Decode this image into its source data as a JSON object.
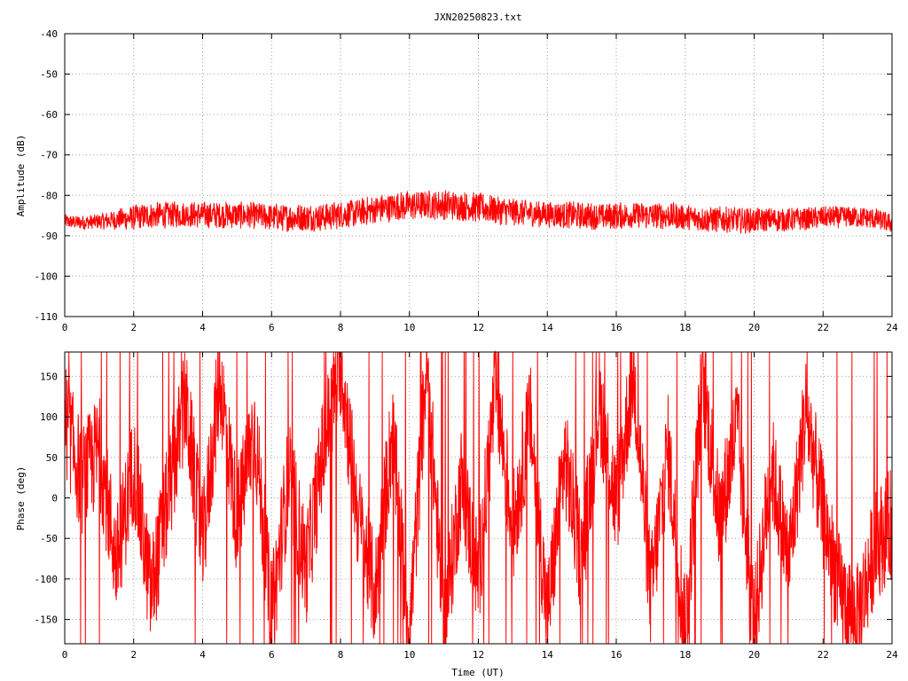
{
  "title": "JXN20250823.txt",
  "colors": {
    "series": "#ff0000",
    "axes": "#000000",
    "grid": "#a0a0a0"
  },
  "chart_data": [
    {
      "type": "line",
      "panel": "amplitude",
      "title": "JXN20250823.txt",
      "ylabel": "Amplitude (dB)",
      "xlabel": "",
      "xlim": [
        0,
        24
      ],
      "ylim": [
        -110,
        -40
      ],
      "xticks": [
        "0",
        "2",
        "4",
        "6",
        "8",
        "10",
        "12",
        "14",
        "16",
        "18",
        "20",
        "22",
        "24"
      ],
      "yticks": [
        "-40",
        "-50",
        "-60",
        "-70",
        "-80",
        "-90",
        "-100",
        "-110"
      ],
      "grid": true,
      "series": [
        {
          "x": [
            0,
            0.5,
            1,
            1.5,
            2,
            2.5,
            3,
            3.5,
            4,
            4.5,
            5,
            5.5,
            6,
            6.5,
            7,
            7.5,
            8,
            8.5,
            9,
            9.5,
            10,
            10.5,
            11,
            11.5,
            12,
            12.5,
            13,
            13.5,
            14,
            14.5,
            15,
            15.5,
            16,
            16.5,
            17,
            17.5,
            18,
            18.5,
            19,
            19.5,
            20,
            20.5,
            21,
            21.5,
            22,
            22.5,
            23,
            23.5,
            24
          ],
          "y_center": [
            -86.5,
            -86.7,
            -86.5,
            -86.0,
            -85.5,
            -85.0,
            -84.8,
            -84.7,
            -84.8,
            -84.8,
            -84.9,
            -85.0,
            -85.3,
            -85.5,
            -85.5,
            -85.3,
            -84.8,
            -84.3,
            -83.5,
            -82.9,
            -82.5,
            -82.3,
            -82.3,
            -82.6,
            -83.0,
            -83.6,
            -84.0,
            -84.4,
            -84.6,
            -84.8,
            -85.0,
            -85.2,
            -85.0,
            -85.0,
            -85.0,
            -85.0,
            -85.5,
            -85.8,
            -86.0,
            -86.2,
            -86.3,
            -86.0,
            -86.0,
            -85.8,
            -85.5,
            -85.3,
            -85.3,
            -85.8,
            -87.0
          ],
          "half_range": [
            1.8,
            1.8,
            2.0,
            2.6,
            3.2,
            3.3,
            3.4,
            3.3,
            3.4,
            3.4,
            3.4,
            3.4,
            3.5,
            3.6,
            3.6,
            3.6,
            3.6,
            3.6,
            3.7,
            3.7,
            3.8,
            3.8,
            3.8,
            3.8,
            3.8,
            3.7,
            3.6,
            3.5,
            3.4,
            3.4,
            3.4,
            3.4,
            3.4,
            3.4,
            3.5,
            3.5,
            3.4,
            3.4,
            3.3,
            3.3,
            3.2,
            3.1,
            3.0,
            2.9,
            2.8,
            2.8,
            2.8,
            2.8,
            2.5
          ]
        }
      ]
    },
    {
      "type": "line",
      "panel": "phase",
      "title": "",
      "ylabel": "Phase (deg)",
      "xlabel": "Time (UT)",
      "xlim": [
        0,
        24
      ],
      "ylim": [
        -180,
        180
      ],
      "xticks": [
        "0",
        "2",
        "4",
        "6",
        "8",
        "10",
        "12",
        "14",
        "16",
        "18",
        "20",
        "22",
        "24"
      ],
      "yticks": [
        "150",
        "100",
        "50",
        "0",
        "-50",
        "-100",
        "-150"
      ],
      "grid": true,
      "series": [
        {
          "x": [
            0,
            0.5,
            1,
            1.5,
            2,
            2.5,
            3,
            3.5,
            4,
            4.5,
            5,
            5.5,
            6,
            6.5,
            7,
            7.5,
            8,
            8.5,
            9,
            9.5,
            10,
            10.5,
            11,
            11.5,
            12,
            12.5,
            13,
            13.5,
            14,
            14.5,
            15,
            15.5,
            16,
            16.5,
            17,
            17.5,
            18,
            18.5,
            19,
            19.5,
            20,
            20.5,
            21,
            21.5,
            22,
            22.5,
            23,
            23.5,
            24
          ],
          "y_wrapped": [
            100,
            20,
            60,
            -80,
            40,
            -120,
            0,
            120,
            -60,
            150,
            -30,
            90,
            -150,
            30,
            -90,
            60,
            170,
            -20,
            -120,
            80,
            -170,
            170,
            -160,
            20,
            -100,
            140,
            -40,
            100,
            -150,
            50,
            -80,
            120,
            -10,
            160,
            -120,
            60,
            -170,
            150,
            -30,
            90,
            -160,
            40,
            -80,
            110,
            -20,
            -120,
            -150,
            -60,
            -30
          ]
        }
      ]
    }
  ]
}
